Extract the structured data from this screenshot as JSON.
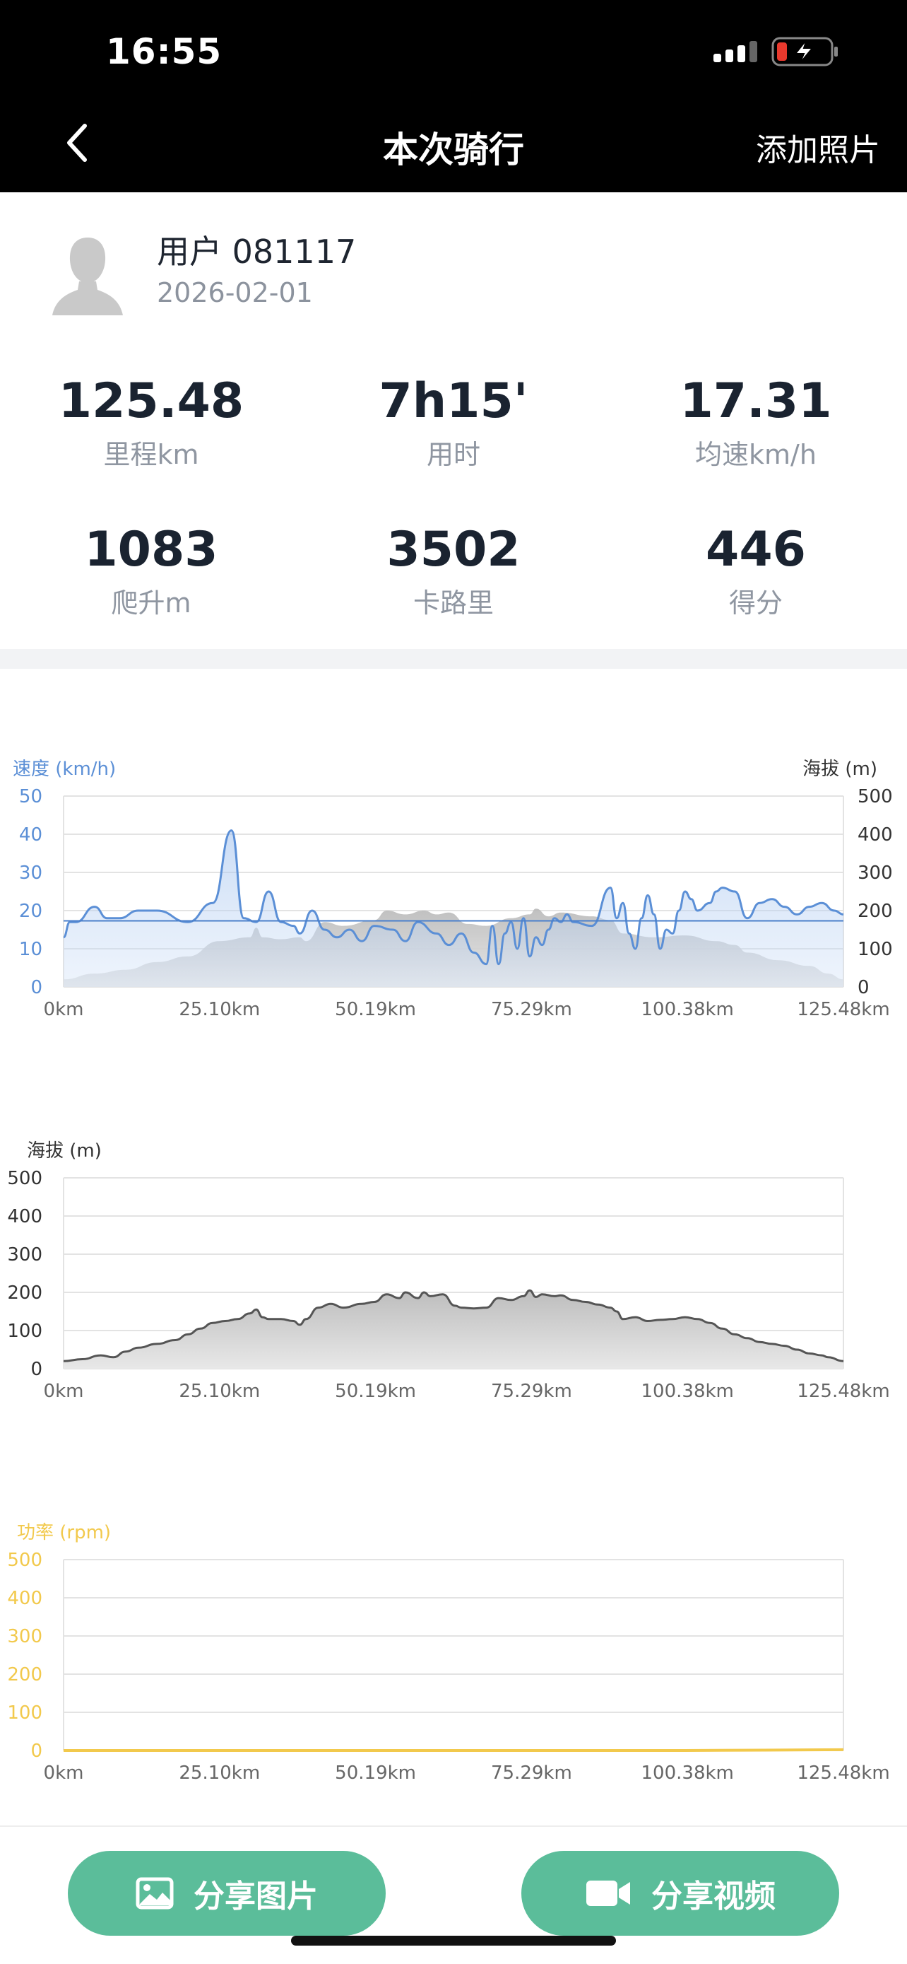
{
  "status_bar": {
    "time": "16:55"
  },
  "nav": {
    "title": "本次骑行",
    "action": "添加照片",
    "back_icon": "chevron-left-icon"
  },
  "profile": {
    "name": "用户 081117",
    "date": "2026-02-01",
    "avatar_icon": "person-silhouette-icon"
  },
  "stats": [
    {
      "value": "125.48",
      "label": "里程km"
    },
    {
      "value": "7h15'",
      "label": "用时"
    },
    {
      "value": "17.31",
      "label": "均速km/h"
    },
    {
      "value": "1083",
      "label": "爬升m"
    },
    {
      "value": "3502",
      "label": "卡路里"
    },
    {
      "value": "446",
      "label": "得分"
    }
  ],
  "buttons": {
    "share_image": "分享图片",
    "share_video": "分享视频"
  },
  "colors": {
    "accent": "#5bbd9a",
    "speed": "#5b8fd6",
    "power": "#f2c94c",
    "elevation": "#555555"
  },
  "chart_data": [
    {
      "type": "line",
      "left_axis_title": "速度 (km/h)",
      "right_axis_title": "海拔 (m)",
      "x_ticks": [
        "0km",
        "25.10km",
        "50.19km",
        "75.29km",
        "100.38km",
        "125.48km"
      ],
      "x_range": [
        0,
        125.48
      ],
      "ylim_left": [
        0,
        50
      ],
      "yticks_left": [
        "0",
        "10",
        "20",
        "30",
        "40",
        "50"
      ],
      "ylim_right": [
        0,
        500
      ],
      "yticks_right": [
        "0",
        "100",
        "200",
        "300",
        "400",
        "500"
      ],
      "average_speed": 17.31,
      "series": [
        {
          "axis": "left",
          "x": [
            0,
            1,
            2,
            5,
            7,
            9,
            12,
            15,
            20,
            24,
            27,
            29,
            31,
            33,
            35,
            37,
            38,
            40,
            42,
            44,
            46,
            48,
            50,
            53,
            55,
            57,
            60,
            62,
            64,
            66,
            68,
            69,
            70,
            71,
            72,
            73,
            74,
            75,
            76,
            77,
            78,
            79,
            80,
            81,
            82,
            85,
            88,
            89,
            90,
            91,
            92,
            93,
            94,
            95,
            96,
            97,
            98,
            99,
            100,
            101,
            102,
            104,
            105,
            106,
            108,
            110,
            112,
            114,
            116,
            118,
            120,
            122,
            124,
            125.48
          ],
          "y": [
            13,
            17,
            17,
            21,
            18,
            18,
            20,
            20,
            17,
            22,
            41,
            18,
            17,
            25,
            17,
            16,
            14,
            20,
            15,
            13,
            15,
            12,
            16,
            15,
            12,
            17,
            14,
            11,
            14,
            9,
            6,
            16,
            6,
            14,
            17,
            10,
            18,
            8,
            13,
            11,
            15,
            18,
            17,
            19,
            17,
            16,
            26,
            18,
            22,
            14,
            10,
            18,
            24,
            19,
            10,
            15,
            14,
            20,
            25,
            23,
            20,
            22,
            25,
            26,
            25,
            18,
            22,
            23,
            21,
            19,
            21,
            22,
            20,
            19
          ],
          "style": "line-with-fill"
        },
        {
          "axis": "right",
          "x": [
            0,
            5,
            10,
            15,
            20,
            25,
            30,
            31,
            32,
            35,
            38,
            39,
            42,
            45,
            50,
            52,
            55,
            58,
            60,
            62,
            65,
            68,
            72,
            75,
            76,
            78,
            80,
            85,
            88,
            90,
            95,
            100,
            105,
            108,
            110,
            115,
            120,
            123,
            125.48
          ],
          "y": [
            20,
            35,
            45,
            65,
            80,
            120,
            130,
            155,
            130,
            125,
            130,
            120,
            170,
            160,
            175,
            200,
            190,
            200,
            190,
            195,
            165,
            160,
            180,
            190,
            205,
            185,
            195,
            185,
            175,
            140,
            130,
            135,
            120,
            110,
            90,
            70,
            55,
            35,
            20
          ],
          "style": "area"
        }
      ]
    },
    {
      "type": "area",
      "left_axis_title": "海拔 (m)",
      "x_ticks": [
        "0km",
        "25.10km",
        "50.19km",
        "75.29km",
        "100.38km",
        "125.48km"
      ],
      "x_range": [
        0,
        125.48
      ],
      "ylim": [
        0,
        500
      ],
      "yticks": [
        "0",
        "100",
        "200",
        "300",
        "400",
        "500"
      ],
      "series": [
        {
          "x": [
            0,
            3,
            6,
            8,
            10,
            12,
            15,
            18,
            20,
            22,
            24,
            26,
            28,
            30,
            31,
            32,
            33,
            35,
            37,
            38,
            39,
            41,
            43,
            45,
            48,
            50,
            52,
            54,
            55,
            57,
            58,
            59,
            61,
            63,
            64,
            66,
            68,
            70,
            72,
            74,
            75,
            76,
            77,
            79,
            80,
            82,
            84,
            86,
            88,
            89,
            90,
            92,
            94,
            96,
            98,
            100,
            102,
            104,
            106,
            108,
            110,
            112,
            114,
            116,
            118,
            120,
            122,
            123,
            125.48
          ],
          "y": [
            20,
            25,
            35,
            30,
            45,
            55,
            65,
            75,
            90,
            105,
            120,
            125,
            130,
            145,
            155,
            135,
            130,
            130,
            125,
            115,
            130,
            160,
            170,
            160,
            170,
            175,
            195,
            185,
            200,
            185,
            200,
            190,
            195,
            165,
            160,
            158,
            160,
            185,
            180,
            190,
            205,
            188,
            195,
            190,
            192,
            180,
            175,
            168,
            160,
            150,
            130,
            135,
            125,
            128,
            130,
            135,
            130,
            120,
            105,
            90,
            80,
            70,
            65,
            60,
            50,
            40,
            35,
            30,
            20
          ]
        }
      ]
    },
    {
      "type": "line",
      "left_axis_title": "功率 (rpm)",
      "x_ticks": [
        "0km",
        "25.10km",
        "50.19km",
        "75.29km",
        "100.38km",
        "125.48km"
      ],
      "x_range": [
        0,
        125.48
      ],
      "ylim": [
        0,
        500
      ],
      "yticks": [
        "0",
        "100",
        "200",
        "300",
        "400",
        "500"
      ],
      "series": [
        {
          "x": [
            0,
            100,
            125.48
          ],
          "y": [
            0,
            0,
            2
          ]
        }
      ]
    }
  ]
}
